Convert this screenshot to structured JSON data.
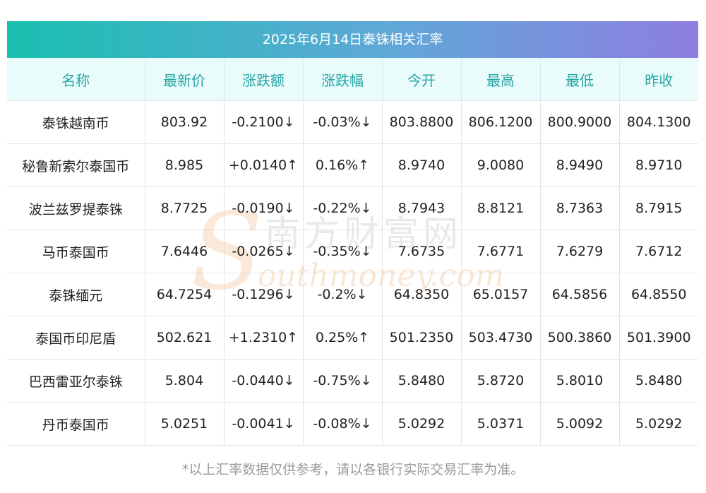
{
  "title": "2025年6月14日泰铢相关汇率",
  "columns": [
    "名称",
    "最新价",
    "涨跌额",
    "涨跌幅",
    "今开",
    "最高",
    "最低",
    "昨收"
  ],
  "rows": [
    {
      "name": "泰铢越南币",
      "latest": "803.92",
      "change": "-0.2100↓",
      "change_pct": "-0.03%↓",
      "open": "803.8800",
      "high": "806.1200",
      "low": "800.9000",
      "prev_close": "804.1300",
      "direction": "down"
    },
    {
      "name": "秘鲁新索尔泰国币",
      "latest": "8.985",
      "change": "+0.0140↑",
      "change_pct": "0.16%↑",
      "open": "8.9740",
      "high": "9.0080",
      "low": "8.9490",
      "prev_close": "8.9710",
      "direction": "up"
    },
    {
      "name": "波兰兹罗提泰铢",
      "latest": "8.7725",
      "change": "-0.0190↓",
      "change_pct": "-0.22%↓",
      "open": "8.7943",
      "high": "8.8121",
      "low": "8.7363",
      "prev_close": "8.7915",
      "direction": "down"
    },
    {
      "name": "马币泰国币",
      "latest": "7.6446",
      "change": "-0.0265↓",
      "change_pct": "-0.35%↓",
      "open": "7.6735",
      "high": "7.6771",
      "low": "7.6279",
      "prev_close": "7.6712",
      "direction": "down"
    },
    {
      "name": "泰铢缅元",
      "latest": "64.7254",
      "change": "-0.1296↓",
      "change_pct": "-0.2%↓",
      "open": "64.8350",
      "high": "65.0157",
      "low": "64.5856",
      "prev_close": "64.8550",
      "direction": "down"
    },
    {
      "name": "泰国币印尼盾",
      "latest": "502.621",
      "change": "+1.2310↑",
      "change_pct": "0.25%↑",
      "open": "501.2350",
      "high": "503.4730",
      "low": "500.3860",
      "prev_close": "501.3900",
      "direction": "up"
    },
    {
      "name": "巴西雷亚尔泰铢",
      "latest": "5.804",
      "change": "-0.0440↓",
      "change_pct": "-0.75%↓",
      "open": "5.8480",
      "high": "5.8720",
      "low": "5.8010",
      "prev_close": "5.8480",
      "direction": "down"
    },
    {
      "name": "丹币泰国币",
      "latest": "5.0251",
      "change": "-0.0041↓",
      "change_pct": "-0.08%↓",
      "open": "5.0292",
      "high": "5.0371",
      "low": "5.0092",
      "prev_close": "5.0292",
      "direction": "down"
    }
  ],
  "watermark": {
    "cn": "南方财富网",
    "en": "outhmoney.com"
  },
  "footnote": "*以上汇率数据仅供参考，请以各银行实际交易汇率为准。",
  "colors": {
    "up": "#e8231f",
    "down": "#1e8e1e",
    "header_text": "#27a6a6",
    "gradient_start": "#19c0b0",
    "gradient_end": "#8e7ee0"
  }
}
